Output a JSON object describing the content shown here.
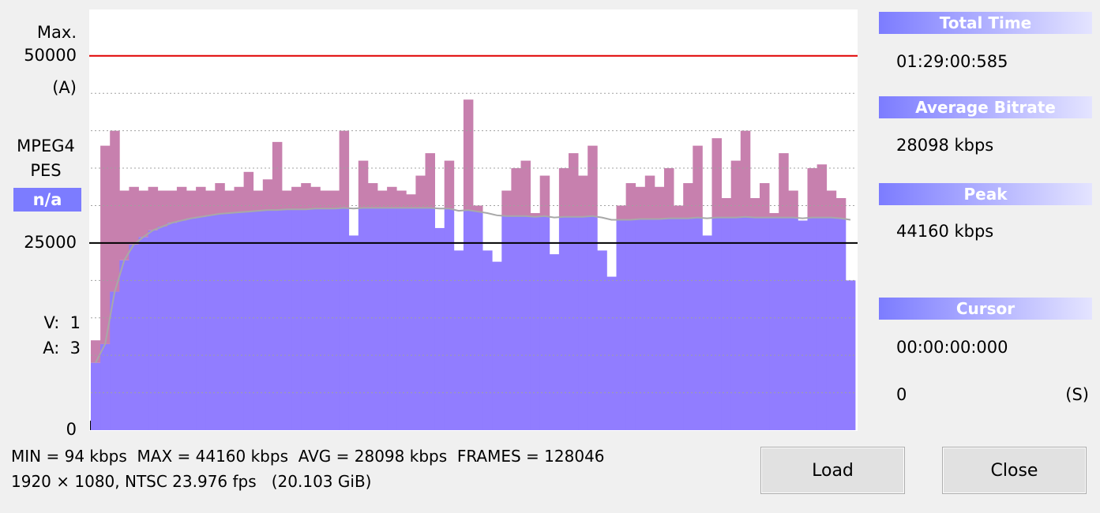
{
  "chart_data": {
    "type": "bar",
    "ylim": [
      0,
      56200
    ],
    "yticks": [
      0,
      25000,
      50000
    ],
    "ygrid": [
      5000,
      10000,
      15000,
      20000,
      30000,
      35000,
      40000,
      45000
    ],
    "reference_lines": [
      {
        "value": 50000,
        "color": "#e00000"
      },
      {
        "value": 25000,
        "color": "#000000"
      }
    ],
    "above_color": "#c780ae",
    "series": [
      {
        "color": "#917dff",
        "values": [
          12000,
          38000,
          40000,
          32000,
          32500,
          32000,
          32500,
          32000,
          32000,
          32500,
          32000,
          32500,
          32000,
          33000,
          32000,
          32500,
          34500,
          32000,
          33500,
          38500,
          32000,
          32500,
          33000,
          32500,
          32000,
          32000,
          40000,
          26000,
          36000,
          33000,
          32000,
          32500,
          32000,
          31500,
          34000,
          37000,
          27000,
          36000,
          24000,
          44160,
          30000,
          24000,
          22500,
          32000,
          35000,
          36000,
          29000,
          34000,
          23500,
          35000,
          37000,
          34000,
          38000,
          24000,
          20500,
          30000,
          33000,
          32500,
          34000,
          32500,
          35000,
          30000,
          33000,
          38000,
          26000,
          39000,
          31000,
          36000,
          40000,
          31000,
          33000,
          29000,
          37000,
          32000,
          28000,
          35000,
          35500,
          32000,
          31000,
          20000
        ]
      },
      {
        "color": "#a8a8a8",
        "values": [
          9000,
          11500,
          18500,
          22700,
          24800,
          25800,
          26700,
          27200,
          27700,
          28000,
          28300,
          28500,
          28700,
          28900,
          29000,
          29100,
          29200,
          29300,
          29400,
          29400,
          29500,
          29500,
          29500,
          29600,
          29600,
          29600,
          29700,
          29600,
          29700,
          29700,
          29700,
          29700,
          29700,
          29700,
          29700,
          29700,
          29600,
          29600,
          29300,
          29400,
          29200,
          29000,
          28700,
          28600,
          28600,
          28600,
          28500,
          28600,
          28400,
          28500,
          28500,
          28500,
          28600,
          28400,
          28100,
          28100,
          28100,
          28200,
          28200,
          28200,
          28300,
          28300,
          28300,
          28400,
          28300,
          28400,
          28400,
          28400,
          28500,
          28400,
          28400,
          28400,
          28400,
          28400,
          28300,
          28400,
          28400,
          28400,
          28300,
          28100
        ]
      }
    ],
    "side_labels": {
      "max": "Max.",
      "unit": "(A)",
      "format": "MPEG4",
      "stream": "PES",
      "status": "n/a",
      "video": "V:  1",
      "audio": "A:  3"
    }
  },
  "panel": [
    {
      "header": "Total Time",
      "value": "01:29:00:585"
    },
    {
      "header": "Average Bitrate",
      "value": "28098 kbps"
    },
    {
      "header": "Peak",
      "value": "44160 kbps"
    },
    {
      "header": "Cursor",
      "value": "00:00:00:000"
    }
  ],
  "cursor_position": {
    "value": "0",
    "unit": "(S)"
  },
  "footer": [
    "MIN = 94 kbps  MAX = 44160 kbps  AVG = 28098 kbps  FRAMES = 128046",
    "1920 × 1080, NTSC 23.976 fps   (20.103 GiB)"
  ],
  "buttons": [
    "Load",
    "Close"
  ]
}
